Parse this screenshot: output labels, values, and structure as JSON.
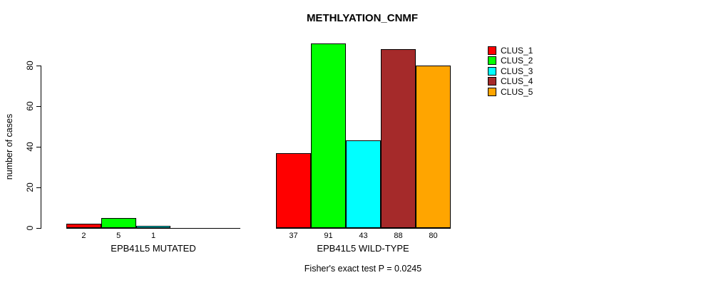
{
  "chart_data": {
    "type": "bar",
    "title": "METHLYATION_CNMF",
    "ylabel": "number of cases",
    "xlabel": "",
    "y_ticks": [
      0,
      20,
      40,
      60,
      80
    ],
    "ylim": [
      0,
      91
    ],
    "grid": false,
    "legend_position": "right",
    "categories": [
      "EPB41L5 MUTATED",
      "EPB41L5 WILD-TYPE"
    ],
    "series": [
      {
        "name": "CLUS_1",
        "color": "#FF0000",
        "values": [
          2,
          37
        ]
      },
      {
        "name": "CLUS_2",
        "color": "#00FF00",
        "values": [
          5,
          91
        ]
      },
      {
        "name": "CLUS_3",
        "color": "#00FFFF",
        "values": [
          1,
          43
        ]
      },
      {
        "name": "CLUS_4",
        "color": "#A52A2A",
        "values": [
          0,
          88
        ]
      },
      {
        "name": "CLUS_5",
        "color": "#FFA500",
        "values": [
          0,
          80
        ]
      }
    ],
    "bar_value_labels": {
      "EPB41L5 MUTATED": [
        "2",
        "5",
        "1"
      ],
      "EPB41L5 WILD-TYPE": [
        "37",
        "91",
        "43",
        "88",
        "80"
      ]
    },
    "annotation": "Fisher's exact test P = 0.0245"
  }
}
